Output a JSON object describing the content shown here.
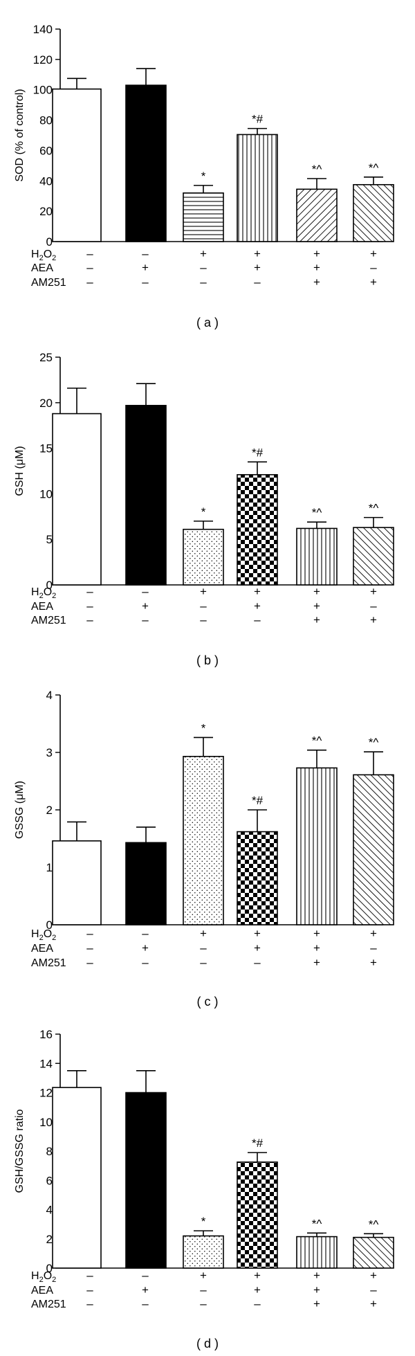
{
  "figure": {
    "treatment_labels": {
      "h2o2": "H",
      "h2o2_sub": "2",
      "h2o2_o": "O",
      "h2o2_sub2": "2",
      "aea": "AEA",
      "am251": "AM251"
    },
    "treatment_signs": {
      "h2o2": [
        "–",
        "–",
        "+",
        "+",
        "+",
        "+"
      ],
      "aea": [
        "–",
        "+",
        "–",
        "+",
        "+",
        "–"
      ],
      "am251": [
        "–",
        "–",
        "–",
        "–",
        "+",
        "+"
      ]
    },
    "colors": {
      "axis": "#000000",
      "bar_fill": "#ffffff",
      "solid_fill": "#000000"
    }
  },
  "chart_data": [
    {
      "type": "bar",
      "panel_label": "( a )",
      "ylabel": "SOD (% of control)",
      "ylim": [
        0,
        140
      ],
      "yticks": [
        0,
        20,
        40,
        60,
        80,
        100,
        120,
        140
      ],
      "categories": [
        "1",
        "2",
        "3",
        "4",
        "5",
        "6"
      ],
      "values": [
        100.5,
        103,
        32,
        70.5,
        34.5,
        37.5
      ],
      "errors": [
        7,
        11,
        5,
        4,
        7,
        5
      ],
      "fills": [
        "open",
        "solid",
        "hlines",
        "vlines",
        "diag-up",
        "diag-down"
      ],
      "annotations": [
        "",
        "",
        "*",
        "*#",
        "*^",
        "*^"
      ]
    },
    {
      "type": "bar",
      "panel_label": "( b )",
      "ylabel": "GSH (μM)",
      "ylim": [
        0,
        25
      ],
      "yticks": [
        0,
        5,
        10,
        15,
        20,
        25
      ],
      "categories": [
        "1",
        "2",
        "3",
        "4",
        "5",
        "6"
      ],
      "values": [
        18.8,
        19.7,
        6.1,
        12.1,
        6.2,
        6.3
      ],
      "errors": [
        2.8,
        2.4,
        0.9,
        1.4,
        0.7,
        1.1
      ],
      "fills": [
        "open",
        "solid",
        "dots",
        "checker",
        "vlines",
        "diag-down"
      ],
      "annotations": [
        "",
        "",
        "*",
        "*#",
        "*^",
        "*^"
      ]
    },
    {
      "type": "bar",
      "panel_label": "( c )",
      "ylabel": "GSSG (μM)",
      "ylim": [
        0,
        4
      ],
      "yticks": [
        0,
        1,
        2,
        3,
        4
      ],
      "categories": [
        "1",
        "2",
        "3",
        "4",
        "5",
        "6"
      ],
      "values": [
        1.46,
        1.43,
        2.93,
        1.62,
        2.73,
        2.61
      ],
      "errors": [
        0.33,
        0.27,
        0.33,
        0.38,
        0.31,
        0.4
      ],
      "fills": [
        "open",
        "solid",
        "dots",
        "checker",
        "vlines",
        "diag-down"
      ],
      "annotations": [
        "",
        "",
        "*",
        "*#",
        "*^",
        "*^"
      ]
    },
    {
      "type": "bar",
      "panel_label": "( d )",
      "ylabel": "GSH/GSSG ratio",
      "ylim": [
        0,
        16
      ],
      "yticks": [
        0,
        2,
        4,
        6,
        8,
        10,
        12,
        14,
        16
      ],
      "categories": [
        "1",
        "2",
        "3",
        "4",
        "5",
        "6"
      ],
      "values": [
        12.35,
        12.0,
        2.2,
        7.25,
        2.15,
        2.1
      ],
      "errors": [
        1.15,
        1.5,
        0.35,
        0.65,
        0.25,
        0.25
      ],
      "fills": [
        "open",
        "solid",
        "dots",
        "checker",
        "vlines",
        "diag-down"
      ],
      "annotations": [
        "",
        "",
        "*",
        "*#",
        "*^",
        "*^"
      ]
    }
  ]
}
